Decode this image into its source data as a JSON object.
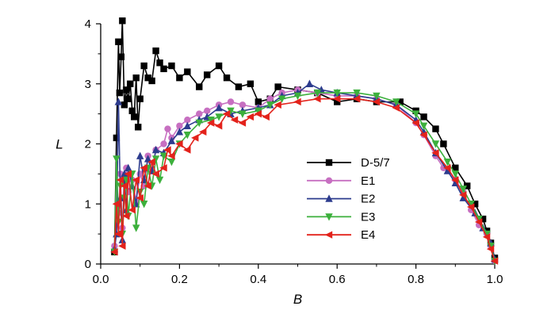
{
  "chart_data": {
    "type": "line",
    "xlabel": "B",
    "ylabel": "L",
    "xlim": [
      0,
      1.0
    ],
    "ylim": [
      0,
      4
    ],
    "x_ticks": [
      "0.0",
      "0.2",
      "0.4",
      "0.6",
      "0.8",
      "1.0"
    ],
    "y_ticks": [
      "0",
      "1",
      "2",
      "3",
      "4"
    ],
    "legend_position": "center-right",
    "series": [
      {
        "name": "D-5/7",
        "color": "#000000",
        "marker": "square",
        "points": [
          [
            0.035,
            0.2
          ],
          [
            0.04,
            2.1
          ],
          [
            0.045,
            3.7
          ],
          [
            0.048,
            2.85
          ],
          [
            0.052,
            3.45
          ],
          [
            0.055,
            4.05
          ],
          [
            0.06,
            2.65
          ],
          [
            0.065,
            2.9
          ],
          [
            0.07,
            2.75
          ],
          [
            0.075,
            3.0
          ],
          [
            0.08,
            2.55
          ],
          [
            0.085,
            2.45
          ],
          [
            0.09,
            3.1
          ],
          [
            0.095,
            2.28
          ],
          [
            0.1,
            2.75
          ],
          [
            0.11,
            3.3
          ],
          [
            0.12,
            3.1
          ],
          [
            0.13,
            3.05
          ],
          [
            0.14,
            3.55
          ],
          [
            0.15,
            3.35
          ],
          [
            0.16,
            3.25
          ],
          [
            0.18,
            3.3
          ],
          [
            0.2,
            3.1
          ],
          [
            0.22,
            3.2
          ],
          [
            0.25,
            2.95
          ],
          [
            0.27,
            3.15
          ],
          [
            0.3,
            3.3
          ],
          [
            0.32,
            3.1
          ],
          [
            0.35,
            2.95
          ],
          [
            0.38,
            3.0
          ],
          [
            0.4,
            2.7
          ],
          [
            0.43,
            2.75
          ],
          [
            0.45,
            2.95
          ],
          [
            0.5,
            2.9
          ],
          [
            0.55,
            2.85
          ],
          [
            0.6,
            2.7
          ],
          [
            0.65,
            2.75
          ],
          [
            0.7,
            2.7
          ],
          [
            0.76,
            2.7
          ],
          [
            0.8,
            2.55
          ],
          [
            0.82,
            2.45
          ],
          [
            0.85,
            2.25
          ],
          [
            0.87,
            2.0
          ],
          [
            0.9,
            1.6
          ],
          [
            0.93,
            1.3
          ],
          [
            0.95,
            1.0
          ],
          [
            0.97,
            0.75
          ],
          [
            0.98,
            0.55
          ],
          [
            0.99,
            0.35
          ],
          [
            1.0,
            0.1
          ]
        ]
      },
      {
        "name": "E1",
        "color": "#c76fc1",
        "marker": "circle",
        "points": [
          [
            0.035,
            0.3
          ],
          [
            0.045,
            0.85
          ],
          [
            0.05,
            1.5
          ],
          [
            0.055,
            0.6
          ],
          [
            0.065,
            1.6
          ],
          [
            0.07,
            1.2
          ],
          [
            0.08,
            1.4
          ],
          [
            0.09,
            1.05
          ],
          [
            0.1,
            1.5
          ],
          [
            0.11,
            1.3
          ],
          [
            0.12,
            1.8
          ],
          [
            0.13,
            1.55
          ],
          [
            0.14,
            1.9
          ],
          [
            0.16,
            2.0
          ],
          [
            0.17,
            2.25
          ],
          [
            0.18,
            2.1
          ],
          [
            0.2,
            2.3
          ],
          [
            0.22,
            2.4
          ],
          [
            0.25,
            2.5
          ],
          [
            0.27,
            2.55
          ],
          [
            0.3,
            2.65
          ],
          [
            0.33,
            2.7
          ],
          [
            0.36,
            2.65
          ],
          [
            0.4,
            2.6
          ],
          [
            0.43,
            2.75
          ],
          [
            0.46,
            2.85
          ],
          [
            0.5,
            2.9
          ],
          [
            0.55,
            2.85
          ],
          [
            0.6,
            2.8
          ],
          [
            0.65,
            2.8
          ],
          [
            0.7,
            2.75
          ],
          [
            0.75,
            2.65
          ],
          [
            0.8,
            2.35
          ],
          [
            0.82,
            2.15
          ],
          [
            0.85,
            1.8
          ],
          [
            0.87,
            1.6
          ],
          [
            0.9,
            1.4
          ],
          [
            0.92,
            1.2
          ],
          [
            0.94,
            0.9
          ],
          [
            0.96,
            0.65
          ],
          [
            0.98,
            0.5
          ],
          [
            0.99,
            0.3
          ],
          [
            1.0,
            0.05
          ]
        ]
      },
      {
        "name": "E2",
        "color": "#2d3c8e",
        "marker": "triangle-up",
        "points": [
          [
            0.035,
            0.25
          ],
          [
            0.04,
            0.5
          ],
          [
            0.045,
            2.7
          ],
          [
            0.05,
            1.1
          ],
          [
            0.055,
            0.4
          ],
          [
            0.06,
            1.5
          ],
          [
            0.065,
            0.9
          ],
          [
            0.07,
            1.6
          ],
          [
            0.08,
            1.3
          ],
          [
            0.09,
            1.0
          ],
          [
            0.1,
            1.8
          ],
          [
            0.11,
            1.4
          ],
          [
            0.12,
            1.75
          ],
          [
            0.13,
            1.55
          ],
          [
            0.14,
            1.9
          ],
          [
            0.16,
            1.85
          ],
          [
            0.18,
            2.05
          ],
          [
            0.2,
            2.2
          ],
          [
            0.22,
            2.3
          ],
          [
            0.25,
            2.4
          ],
          [
            0.27,
            2.45
          ],
          [
            0.3,
            2.6
          ],
          [
            0.33,
            2.5
          ],
          [
            0.36,
            2.55
          ],
          [
            0.4,
            2.6
          ],
          [
            0.43,
            2.65
          ],
          [
            0.46,
            2.8
          ],
          [
            0.5,
            2.85
          ],
          [
            0.53,
            3.0
          ],
          [
            0.56,
            2.9
          ],
          [
            0.6,
            2.85
          ],
          [
            0.65,
            2.8
          ],
          [
            0.7,
            2.75
          ],
          [
            0.75,
            2.65
          ],
          [
            0.8,
            2.4
          ],
          [
            0.82,
            2.2
          ],
          [
            0.85,
            1.85
          ],
          [
            0.88,
            1.55
          ],
          [
            0.9,
            1.35
          ],
          [
            0.92,
            1.1
          ],
          [
            0.95,
            0.85
          ],
          [
            0.97,
            0.6
          ],
          [
            0.99,
            0.35
          ],
          [
            1.0,
            0.08
          ]
        ]
      },
      {
        "name": "E3",
        "color": "#3cb03c",
        "marker": "triangle-down",
        "points": [
          [
            0.035,
            0.2
          ],
          [
            0.04,
            1.75
          ],
          [
            0.045,
            0.7
          ],
          [
            0.05,
            1.3
          ],
          [
            0.055,
            0.5
          ],
          [
            0.06,
            1.1
          ],
          [
            0.065,
            1.4
          ],
          [
            0.07,
            0.8
          ],
          [
            0.08,
            1.5
          ],
          [
            0.09,
            0.6
          ],
          [
            0.1,
            1.2
          ],
          [
            0.11,
            1.0
          ],
          [
            0.12,
            1.6
          ],
          [
            0.13,
            1.3
          ],
          [
            0.14,
            1.75
          ],
          [
            0.15,
            1.4
          ],
          [
            0.16,
            1.8
          ],
          [
            0.18,
            1.7
          ],
          [
            0.2,
            2.0
          ],
          [
            0.22,
            2.15
          ],
          [
            0.25,
            2.35
          ],
          [
            0.28,
            2.4
          ],
          [
            0.3,
            2.45
          ],
          [
            0.33,
            2.55
          ],
          [
            0.36,
            2.5
          ],
          [
            0.4,
            2.55
          ],
          [
            0.43,
            2.65
          ],
          [
            0.46,
            2.75
          ],
          [
            0.5,
            2.8
          ],
          [
            0.55,
            2.85
          ],
          [
            0.6,
            2.85
          ],
          [
            0.65,
            2.85
          ],
          [
            0.7,
            2.8
          ],
          [
            0.75,
            2.7
          ],
          [
            0.8,
            2.5
          ],
          [
            0.82,
            2.3
          ],
          [
            0.85,
            2.0
          ],
          [
            0.88,
            1.7
          ],
          [
            0.9,
            1.5
          ],
          [
            0.92,
            1.25
          ],
          [
            0.94,
            1.0
          ],
          [
            0.96,
            0.75
          ],
          [
            0.98,
            0.5
          ],
          [
            0.99,
            0.3
          ],
          [
            1.0,
            0.05
          ]
        ]
      },
      {
        "name": "E4",
        "color": "#e3221b",
        "marker": "triangle-left",
        "points": [
          [
            0.035,
            0.2
          ],
          [
            0.04,
            1.0
          ],
          [
            0.045,
            0.5
          ],
          [
            0.05,
            1.4
          ],
          [
            0.055,
            0.3
          ],
          [
            0.06,
            1.3
          ],
          [
            0.065,
            0.8
          ],
          [
            0.07,
            1.5
          ],
          [
            0.08,
            0.9
          ],
          [
            0.09,
            1.4
          ],
          [
            0.1,
            1.1
          ],
          [
            0.11,
            1.6
          ],
          [
            0.12,
            1.3
          ],
          [
            0.13,
            1.7
          ],
          [
            0.14,
            1.5
          ],
          [
            0.16,
            1.6
          ],
          [
            0.17,
            1.9
          ],
          [
            0.18,
            1.8
          ],
          [
            0.2,
            2.0
          ],
          [
            0.22,
            1.9
          ],
          [
            0.24,
            2.1
          ],
          [
            0.26,
            2.2
          ],
          [
            0.28,
            2.35
          ],
          [
            0.3,
            2.3
          ],
          [
            0.32,
            2.5
          ],
          [
            0.34,
            2.4
          ],
          [
            0.36,
            2.35
          ],
          [
            0.38,
            2.45
          ],
          [
            0.4,
            2.5
          ],
          [
            0.42,
            2.45
          ],
          [
            0.45,
            2.65
          ],
          [
            0.5,
            2.7
          ],
          [
            0.55,
            2.75
          ],
          [
            0.6,
            2.75
          ],
          [
            0.65,
            2.75
          ],
          [
            0.7,
            2.7
          ],
          [
            0.75,
            2.6
          ],
          [
            0.8,
            2.35
          ],
          [
            0.82,
            2.15
          ],
          [
            0.85,
            1.85
          ],
          [
            0.88,
            1.6
          ],
          [
            0.9,
            1.4
          ],
          [
            0.92,
            1.15
          ],
          [
            0.94,
            0.95
          ],
          [
            0.96,
            0.7
          ],
          [
            0.98,
            0.45
          ],
          [
            0.99,
            0.25
          ],
          [
            1.0,
            0.05
          ]
        ]
      }
    ]
  }
}
